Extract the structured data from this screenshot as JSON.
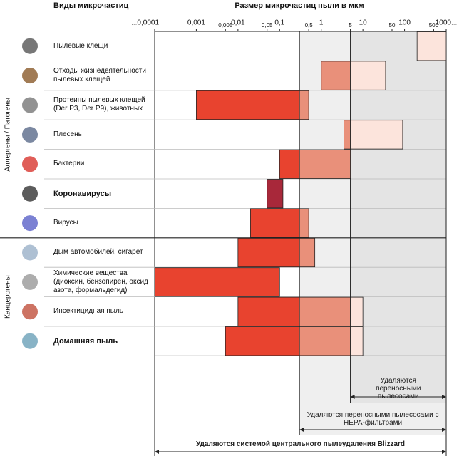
{
  "chart_data": {
    "type": "range-bar",
    "title": "Размер микрочастиц пыли в мкм",
    "category_header": "Виды микрочастиц",
    "log_scale": true,
    "xlim": [
      0.0001,
      1000
    ],
    "xticks": [
      {
        "value": 0.0001,
        "label": "...0,0001"
      },
      {
        "value": 0.001,
        "label": "0,001"
      },
      {
        "value": 0.005,
        "label": "0,005"
      },
      {
        "value": 0.01,
        "label": "0,01"
      },
      {
        "value": 0.05,
        "label": "0,05"
      },
      {
        "value": 0.1,
        "label": "0,1"
      },
      {
        "value": 0.5,
        "label": "0,5"
      },
      1,
      5,
      10,
      50,
      100,
      500,
      {
        "value": 1000,
        "label": "1000..."
      }
    ],
    "zone_colors": [
      "#e8432f",
      "#e9907a",
      "#fce4dc"
    ],
    "groups": [
      {
        "name": "Аллергены / Патогены",
        "first": 0,
        "last": 6
      },
      {
        "name": "Канцерогены",
        "first": 7,
        "last": 10
      }
    ],
    "rows": [
      {
        "name": "Пылевые клещи",
        "min": 200,
        "max": 1000
      },
      {
        "name": "Отходы жизнедеятельности пылевых клещей",
        "min": 1,
        "max": 35
      },
      {
        "name": "Протеины пылевых клещей (Der P3, Der P9), животных",
        "min": 0.001,
        "max": 0.5
      },
      {
        "name": "Плесень",
        "min": 3.5,
        "max": 90
      },
      {
        "name": "Бактерии",
        "min": 0.1,
        "max": 5
      },
      {
        "name": "Коронавирусы",
        "min": 0.05,
        "max": 0.12,
        "bold": true,
        "color": "#a8283a"
      },
      {
        "name": "Вирусы",
        "min": 0.02,
        "max": 0.5
      },
      {
        "name": "Дым автомобилей, сигарет",
        "min": 0.01,
        "max": 0.7
      },
      {
        "name": "Химические вещества (диоксин, бензопирен, оксид азота, формальдегид)",
        "min": 0.0001,
        "max": 0.1
      },
      {
        "name": "Инсектицидная пыль",
        "min": 0.01,
        "max": 10
      },
      {
        "name": "Домашняя пыль",
        "min": 0.005,
        "max": 10,
        "bold": true
      }
    ],
    "zones": [
      {
        "from": 0.3,
        "to": 1000,
        "label": "Удаляются переносными пылесосами с HEPA-фильтрами"
      },
      {
        "from": 5,
        "to": 1000,
        "label": "Удаляются переносными пылесосами"
      }
    ],
    "system": {
      "from": 0.0001,
      "to": 1000,
      "label": "Удаляются системой центрального пылеудаления Blizzard"
    }
  }
}
